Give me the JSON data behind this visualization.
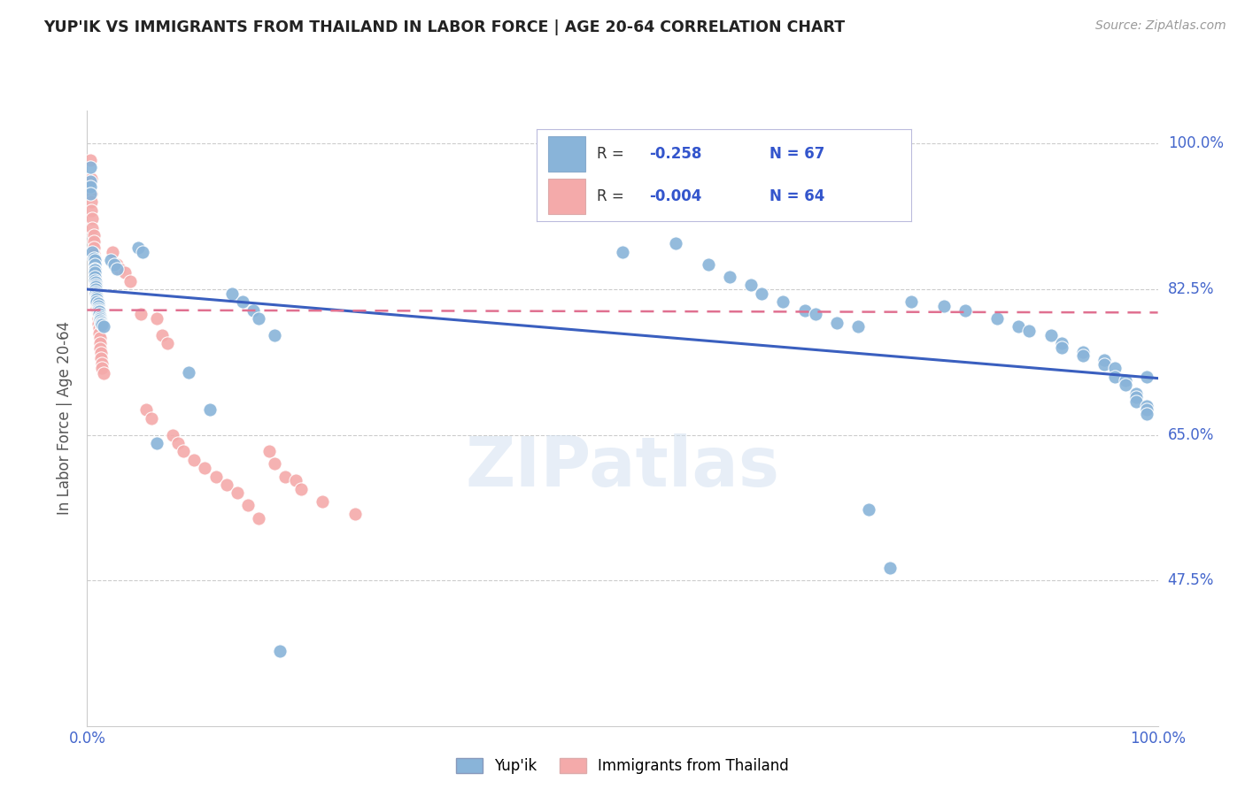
{
  "title": "YUP'IK VS IMMIGRANTS FROM THAILAND IN LABOR FORCE | AGE 20-64 CORRELATION CHART",
  "source": "Source: ZipAtlas.com",
  "ylabel": "In Labor Force | Age 20-64",
  "xlim": [
    0.0,
    1.0
  ],
  "ylim": [
    0.3,
    1.04
  ],
  "yticks": [
    0.475,
    0.65,
    0.825,
    1.0
  ],
  "ytick_labels": [
    "47.5%",
    "65.0%",
    "82.5%",
    "100.0%"
  ],
  "xtick_labels": [
    "0.0%",
    "100.0%"
  ],
  "xticks": [
    0.0,
    1.0
  ],
  "watermark": "ZIPatlas",
  "blue_color": "#89B4D9",
  "pink_color": "#F4AAAA",
  "line_blue": "#3A5FBF",
  "line_pink": "#E07090",
  "title_color": "#222222",
  "tick_color": "#4466CC",
  "blue_scatter": [
    [
      0.003,
      0.972
    ],
    [
      0.003,
      0.955
    ],
    [
      0.003,
      0.948
    ],
    [
      0.003,
      0.94
    ],
    [
      0.005,
      0.87
    ],
    [
      0.006,
      0.862
    ],
    [
      0.007,
      0.86
    ],
    [
      0.007,
      0.855
    ],
    [
      0.007,
      0.85
    ],
    [
      0.007,
      0.848
    ],
    [
      0.007,
      0.845
    ],
    [
      0.007,
      0.84
    ],
    [
      0.007,
      0.836
    ],
    [
      0.008,
      0.834
    ],
    [
      0.008,
      0.83
    ],
    [
      0.008,
      0.828
    ],
    [
      0.008,
      0.825
    ],
    [
      0.008,
      0.822
    ],
    [
      0.008,
      0.82
    ],
    [
      0.009,
      0.818
    ],
    [
      0.009,
      0.815
    ],
    [
      0.009,
      0.813
    ],
    [
      0.009,
      0.81
    ],
    [
      0.01,
      0.808
    ],
    [
      0.01,
      0.805
    ],
    [
      0.01,
      0.802
    ],
    [
      0.01,
      0.8
    ],
    [
      0.011,
      0.798
    ],
    [
      0.011,
      0.795
    ],
    [
      0.012,
      0.792
    ],
    [
      0.012,
      0.79
    ],
    [
      0.012,
      0.788
    ],
    [
      0.013,
      0.786
    ],
    [
      0.013,
      0.784
    ],
    [
      0.014,
      0.782
    ],
    [
      0.015,
      0.78
    ],
    [
      0.022,
      0.86
    ],
    [
      0.025,
      0.855
    ],
    [
      0.028,
      0.85
    ],
    [
      0.048,
      0.875
    ],
    [
      0.052,
      0.87
    ],
    [
      0.065,
      0.64
    ],
    [
      0.095,
      0.725
    ],
    [
      0.115,
      0.68
    ],
    [
      0.135,
      0.82
    ],
    [
      0.145,
      0.81
    ],
    [
      0.155,
      0.8
    ],
    [
      0.16,
      0.79
    ],
    [
      0.175,
      0.77
    ],
    [
      0.5,
      0.87
    ],
    [
      0.55,
      0.88
    ],
    [
      0.58,
      0.855
    ],
    [
      0.6,
      0.84
    ],
    [
      0.62,
      0.83
    ],
    [
      0.63,
      0.82
    ],
    [
      0.65,
      0.81
    ],
    [
      0.67,
      0.8
    ],
    [
      0.68,
      0.795
    ],
    [
      0.7,
      0.785
    ],
    [
      0.72,
      0.78
    ],
    [
      0.73,
      0.56
    ],
    [
      0.75,
      0.49
    ],
    [
      0.77,
      0.81
    ],
    [
      0.8,
      0.805
    ],
    [
      0.82,
      0.8
    ],
    [
      0.85,
      0.79
    ],
    [
      0.87,
      0.78
    ],
    [
      0.88,
      0.775
    ],
    [
      0.9,
      0.77
    ],
    [
      0.91,
      0.76
    ],
    [
      0.91,
      0.755
    ],
    [
      0.93,
      0.75
    ],
    [
      0.93,
      0.745
    ],
    [
      0.95,
      0.74
    ],
    [
      0.95,
      0.735
    ],
    [
      0.96,
      0.73
    ],
    [
      0.96,
      0.72
    ],
    [
      0.97,
      0.715
    ],
    [
      0.97,
      0.71
    ],
    [
      0.98,
      0.7
    ],
    [
      0.98,
      0.695
    ],
    [
      0.98,
      0.69
    ],
    [
      0.99,
      0.685
    ],
    [
      0.99,
      0.68
    ],
    [
      0.99,
      0.675
    ],
    [
      0.99,
      0.72
    ],
    [
      0.18,
      0.39
    ]
  ],
  "pink_scatter": [
    [
      0.003,
      0.98
    ],
    [
      0.004,
      0.958
    ],
    [
      0.004,
      0.94
    ],
    [
      0.004,
      0.93
    ],
    [
      0.004,
      0.92
    ],
    [
      0.005,
      0.91
    ],
    [
      0.005,
      0.898
    ],
    [
      0.006,
      0.89
    ],
    [
      0.006,
      0.882
    ],
    [
      0.006,
      0.875
    ],
    [
      0.006,
      0.868
    ],
    [
      0.007,
      0.862
    ],
    [
      0.007,
      0.856
    ],
    [
      0.007,
      0.85
    ],
    [
      0.007,
      0.844
    ],
    [
      0.007,
      0.838
    ],
    [
      0.008,
      0.832
    ],
    [
      0.008,
      0.826
    ],
    [
      0.008,
      0.82
    ],
    [
      0.009,
      0.814
    ],
    [
      0.009,
      0.808
    ],
    [
      0.009,
      0.802
    ],
    [
      0.01,
      0.796
    ],
    [
      0.01,
      0.79
    ],
    [
      0.01,
      0.784
    ],
    [
      0.011,
      0.778
    ],
    [
      0.011,
      0.772
    ],
    [
      0.012,
      0.766
    ],
    [
      0.012,
      0.76
    ],
    [
      0.012,
      0.754
    ],
    [
      0.013,
      0.748
    ],
    [
      0.013,
      0.742
    ],
    [
      0.014,
      0.736
    ],
    [
      0.014,
      0.73
    ],
    [
      0.015,
      0.724
    ],
    [
      0.024,
      0.87
    ],
    [
      0.028,
      0.855
    ],
    [
      0.03,
      0.85
    ],
    [
      0.035,
      0.845
    ],
    [
      0.04,
      0.835
    ],
    [
      0.05,
      0.795
    ],
    [
      0.055,
      0.68
    ],
    [
      0.06,
      0.67
    ],
    [
      0.065,
      0.79
    ],
    [
      0.07,
      0.77
    ],
    [
      0.075,
      0.76
    ],
    [
      0.08,
      0.65
    ],
    [
      0.085,
      0.64
    ],
    [
      0.09,
      0.63
    ],
    [
      0.1,
      0.62
    ],
    [
      0.11,
      0.61
    ],
    [
      0.12,
      0.6
    ],
    [
      0.13,
      0.59
    ],
    [
      0.14,
      0.58
    ],
    [
      0.15,
      0.565
    ],
    [
      0.16,
      0.55
    ],
    [
      0.17,
      0.63
    ],
    [
      0.175,
      0.615
    ],
    [
      0.185,
      0.6
    ],
    [
      0.195,
      0.595
    ],
    [
      0.2,
      0.585
    ],
    [
      0.22,
      0.57
    ],
    [
      0.25,
      0.555
    ]
  ],
  "blue_line_x": [
    0.0,
    1.0
  ],
  "blue_line_y": [
    0.825,
    0.718
  ],
  "pink_line_x": [
    0.0,
    1.0
  ],
  "pink_line_y": [
    0.8,
    0.797
  ]
}
